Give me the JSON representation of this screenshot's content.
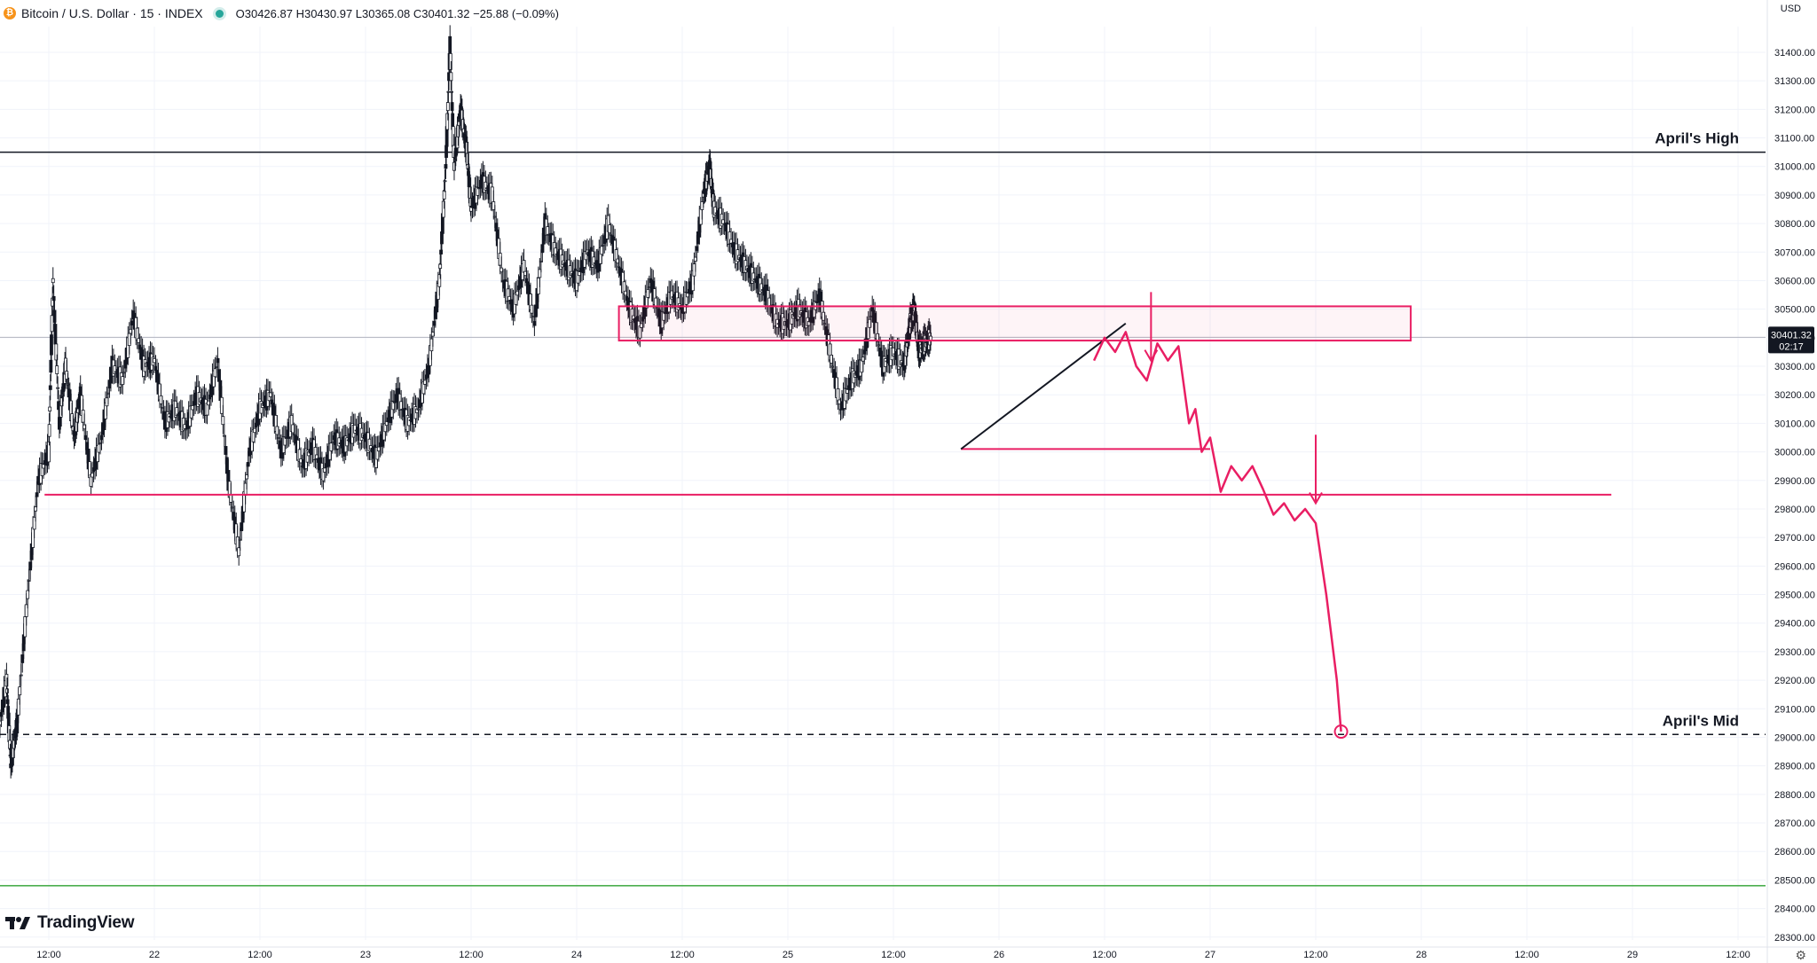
{
  "header": {
    "symbol": "Bitcoin / U.S. Dollar · 15 · INDEX",
    "ohlc": "O30426.87 H30430.97 L30365.08 C30401.32 −25.88 (−0.09%)",
    "btc_glyph": "₿"
  },
  "currency": "USD",
  "branding": {
    "logo_text": "TradingView"
  },
  "chart_data": {
    "type": "line",
    "title": "Bitcoin / U.S. Dollar · 15 · INDEX",
    "xlabel": "",
    "ylabel": "",
    "ylim": [
      28290,
      31490
    ],
    "grid": true,
    "y_ticks": [
      31400,
      31300,
      31200,
      31100,
      31000,
      30900,
      30800,
      30700,
      30600,
      30500,
      30400,
      30300,
      30200,
      30100,
      30000,
      29900,
      29800,
      29700,
      29600,
      29500,
      29400,
      29300,
      29200,
      29100,
      29000,
      28900,
      28800,
      28700,
      28600,
      28500,
      28400,
      28300
    ],
    "y_tick_format": "2dp",
    "x_ticks": [
      {
        "label": "12:00",
        "t": 0.5
      },
      {
        "label": "22",
        "t": 1.0
      },
      {
        "label": "12:00",
        "t": 1.5
      },
      {
        "label": "23",
        "t": 2.0
      },
      {
        "label": "12:00",
        "t": 2.5
      },
      {
        "label": "24",
        "t": 3.0
      },
      {
        "label": "12:00",
        "t": 3.5
      },
      {
        "label": "25",
        "t": 4.0
      },
      {
        "label": "12:00",
        "t": 4.5
      },
      {
        "label": "26",
        "t": 5.0
      },
      {
        "label": "12:00",
        "t": 5.5
      },
      {
        "label": "27",
        "t": 6.0
      },
      {
        "label": "12:00",
        "t": 6.5
      },
      {
        "label": "28",
        "t": 7.0
      },
      {
        "label": "12:00",
        "t": 7.5
      },
      {
        "label": "29",
        "t": 8.0
      },
      {
        "label": "12:00",
        "t": 8.5
      }
    ],
    "current_price": {
      "value": 30401.32,
      "label": "30401.32",
      "countdown": "02:17"
    },
    "series": [
      {
        "type": "candles-path",
        "points": [
          [
            0.0,
            28850
          ],
          [
            0.05,
            28900
          ],
          [
            0.1,
            28820
          ],
          [
            0.15,
            28880
          ],
          [
            0.2,
            28950
          ],
          [
            0.25,
            28960
          ],
          [
            0.3,
            29200
          ],
          [
            0.32,
            28900
          ],
          [
            0.35,
            29050
          ],
          [
            0.4,
            29500
          ],
          [
            0.45,
            29900
          ],
          [
            0.5,
            30000
          ],
          [
            0.52,
            30600
          ],
          [
            0.55,
            30100
          ],
          [
            0.58,
            30300
          ],
          [
            0.62,
            30050
          ],
          [
            0.65,
            30200
          ],
          [
            0.7,
            29900
          ],
          [
            0.75,
            30050
          ],
          [
            0.8,
            30300
          ],
          [
            0.85,
            30250
          ],
          [
            0.9,
            30480
          ],
          [
            0.95,
            30300
          ],
          [
            1.0,
            30320
          ],
          [
            1.05,
            30100
          ],
          [
            1.1,
            30150
          ],
          [
            1.15,
            30080
          ],
          [
            1.2,
            30200
          ],
          [
            1.25,
            30150
          ],
          [
            1.3,
            30320
          ],
          [
            1.35,
            29900
          ],
          [
            1.4,
            29650
          ],
          [
            1.45,
            30000
          ],
          [
            1.5,
            30150
          ],
          [
            1.55,
            30200
          ],
          [
            1.6,
            30000
          ],
          [
            1.65,
            30100
          ],
          [
            1.7,
            29950
          ],
          [
            1.75,
            30020
          ],
          [
            1.8,
            29920
          ],
          [
            1.85,
            30050
          ],
          [
            1.9,
            30020
          ],
          [
            1.95,
            30080
          ],
          [
            2.0,
            30050
          ],
          [
            2.05,
            29980
          ],
          [
            2.1,
            30100
          ],
          [
            2.15,
            30200
          ],
          [
            2.2,
            30100
          ],
          [
            2.25,
            30150
          ],
          [
            2.3,
            30300
          ],
          [
            2.35,
            30600
          ],
          [
            2.38,
            31000
          ],
          [
            2.4,
            31420
          ],
          [
            2.42,
            31000
          ],
          [
            2.45,
            31200
          ],
          [
            2.48,
            31050
          ],
          [
            2.5,
            30850
          ],
          [
            2.55,
            30950
          ],
          [
            2.6,
            30900
          ],
          [
            2.65,
            30600
          ],
          [
            2.7,
            30500
          ],
          [
            2.75,
            30650
          ],
          [
            2.8,
            30450
          ],
          [
            2.85,
            30800
          ],
          [
            2.9,
            30700
          ],
          [
            2.95,
            30650
          ],
          [
            3.0,
            30600
          ],
          [
            3.05,
            30700
          ],
          [
            3.1,
            30650
          ],
          [
            3.15,
            30800
          ],
          [
            3.2,
            30650
          ],
          [
            3.25,
            30500
          ],
          [
            3.3,
            30420
          ],
          [
            3.35,
            30600
          ],
          [
            3.4,
            30450
          ],
          [
            3.45,
            30550
          ],
          [
            3.5,
            30500
          ],
          [
            3.55,
            30600
          ],
          [
            3.6,
            30900
          ],
          [
            3.63,
            31000
          ],
          [
            3.65,
            30850
          ],
          [
            3.7,
            30800
          ],
          [
            3.75,
            30700
          ],
          [
            3.8,
            30650
          ],
          [
            3.85,
            30600
          ],
          [
            3.9,
            30550
          ],
          [
            3.95,
            30450
          ],
          [
            4.0,
            30450
          ],
          [
            4.05,
            30500
          ],
          [
            4.1,
            30450
          ],
          [
            4.15,
            30550
          ],
          [
            4.2,
            30350
          ],
          [
            4.25,
            30150
          ],
          [
            4.3,
            30250
          ],
          [
            4.35,
            30300
          ],
          [
            4.4,
            30500
          ],
          [
            4.45,
            30300
          ],
          [
            4.5,
            30350
          ],
          [
            4.55,
            30300
          ],
          [
            4.58,
            30450
          ],
          [
            4.6,
            30500
          ],
          [
            4.62,
            30350
          ],
          [
            4.65,
            30380
          ],
          [
            4.68,
            30401
          ]
        ],
        "color": "#131722"
      }
    ],
    "levels": [
      {
        "name": "April's High",
        "value": 31050,
        "style": "solid",
        "color": "#131722",
        "show_label": true
      },
      {
        "name": "April's Mid",
        "value": 29010,
        "style": "dashed",
        "color": "#131722",
        "show_label": true
      },
      {
        "name": "",
        "value": 28480,
        "style": "solid",
        "color": "#4caf50",
        "show_label": false
      },
      {
        "name": "",
        "value": 30401.32,
        "style": "solid",
        "color": "#b2b5be",
        "show_label": false
      }
    ],
    "drawings": {
      "color": "#e91e63",
      "zone": {
        "t0": 3.2,
        "t1": 6.95,
        "y0": 30390,
        "y1": 30510
      },
      "support": {
        "t0": 0.48,
        "t1": 7.9,
        "y": 29850
      },
      "small_box": {
        "t0": 4.82,
        "t1": 6.0,
        "y": 30010
      },
      "trend_line": {
        "t0": 4.82,
        "y0": 30010,
        "t1": 5.6,
        "y1": 30450,
        "color": "#131722"
      },
      "forecast_path": [
        [
          5.45,
          30320
        ],
        [
          5.5,
          30400
        ],
        [
          5.55,
          30350
        ],
        [
          5.6,
          30420
        ],
        [
          5.65,
          30300
        ],
        [
          5.7,
          30250
        ],
        [
          5.75,
          30380
        ],
        [
          5.8,
          30320
        ],
        [
          5.85,
          30370
        ],
        [
          5.9,
          30100
        ],
        [
          5.93,
          30150
        ],
        [
          5.96,
          30000
        ],
        [
          6.0,
          30050
        ],
        [
          6.05,
          29860
        ],
        [
          6.1,
          29950
        ],
        [
          6.15,
          29900
        ],
        [
          6.2,
          29950
        ],
        [
          6.25,
          29870
        ],
        [
          6.3,
          29780
        ],
        [
          6.35,
          29820
        ],
        [
          6.4,
          29760
        ],
        [
          6.45,
          29800
        ],
        [
          6.5,
          29750
        ],
        [
          6.55,
          29500
        ],
        [
          6.6,
          29200
        ],
        [
          6.62,
          29020
        ]
      ],
      "arrows": [
        {
          "t": 5.72,
          "y_from": 30560,
          "y_to": 30320
        },
        {
          "t": 6.5,
          "y_from": 30060,
          "y_to": 29820
        }
      ]
    }
  }
}
